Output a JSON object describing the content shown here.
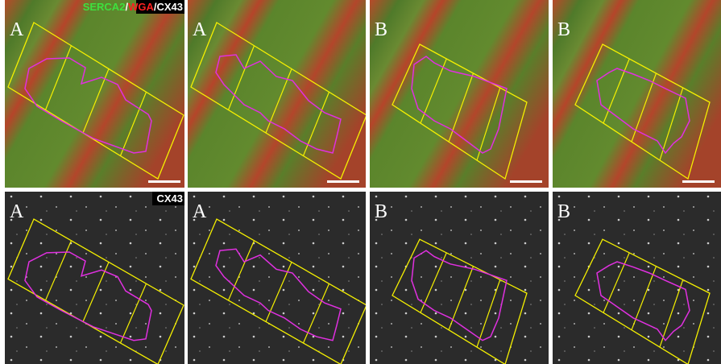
{
  "top_row": {
    "labels": [
      "A",
      "A",
      "B",
      "B"
    ],
    "legend": {
      "serca2": "SERCA2",
      "sep1": "/",
      "wga": "WGA",
      "sep2": "/",
      "cx43": "CX43"
    }
  },
  "bottom_row": {
    "labels": [
      "A",
      "A",
      "B",
      "B"
    ],
    "legend": "CX43"
  }
}
